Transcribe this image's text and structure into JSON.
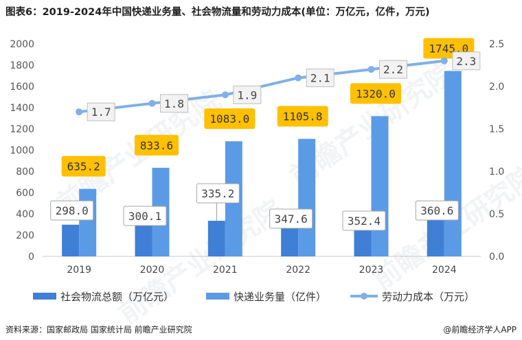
{
  "title": "图表6：2019-2024年中国快递业务量、社会物流量和劳动力成本(单位：万亿元，亿件，万元)",
  "source": "资料来源：国家邮政局 国家统计局 前瞻产业研究院",
  "brand": "@前瞻经济学人APP",
  "watermark": "前瞻产业研究院",
  "chart_data": {
    "type": "bar",
    "categories": [
      "2019",
      "2020",
      "2021",
      "2022",
      "2023",
      "2024"
    ],
    "series": [
      {
        "name": "社会物流总额（万亿元）",
        "type": "bar",
        "axis": "left",
        "color": "#3f7fd6",
        "values": [
          298.0,
          300.1,
          335.2,
          347.6,
          352.4,
          360.6
        ],
        "labels": [
          "298.0",
          "300.1",
          "335.2",
          "347.6",
          "352.4",
          "360.6"
        ]
      },
      {
        "name": "快递业务量（亿件）",
        "type": "bar",
        "axis": "left",
        "color": "#5b9be6",
        "values": [
          635.2,
          833.6,
          1083.0,
          1105.8,
          1320.0,
          1745.0
        ],
        "labels": [
          "635.2",
          "833.6",
          "1083.0",
          "1105.8",
          "1320.0",
          "1745.0"
        ]
      },
      {
        "name": "劳动力成本（万元）",
        "type": "line",
        "axis": "right",
        "color": "#7fb0e8",
        "values": [
          1.7,
          1.8,
          1.9,
          2.1,
          2.2,
          2.3
        ],
        "labels": [
          "1.7",
          "1.8",
          "1.9",
          "2.1",
          "2.2",
          "2.3"
        ]
      }
    ],
    "y_left": {
      "min": 0,
      "max": 2000,
      "ticks": [
        "0",
        "200",
        "400",
        "600",
        "800",
        "1000",
        "1200",
        "1400",
        "1600",
        "1800",
        "2000"
      ]
    },
    "y_right": {
      "min": 0,
      "max": 2.5,
      "ticks": [
        "0.0",
        "0.5",
        "1.0",
        "1.5",
        "2.0",
        "2.5"
      ]
    },
    "grid": false,
    "legend": "bottom"
  }
}
